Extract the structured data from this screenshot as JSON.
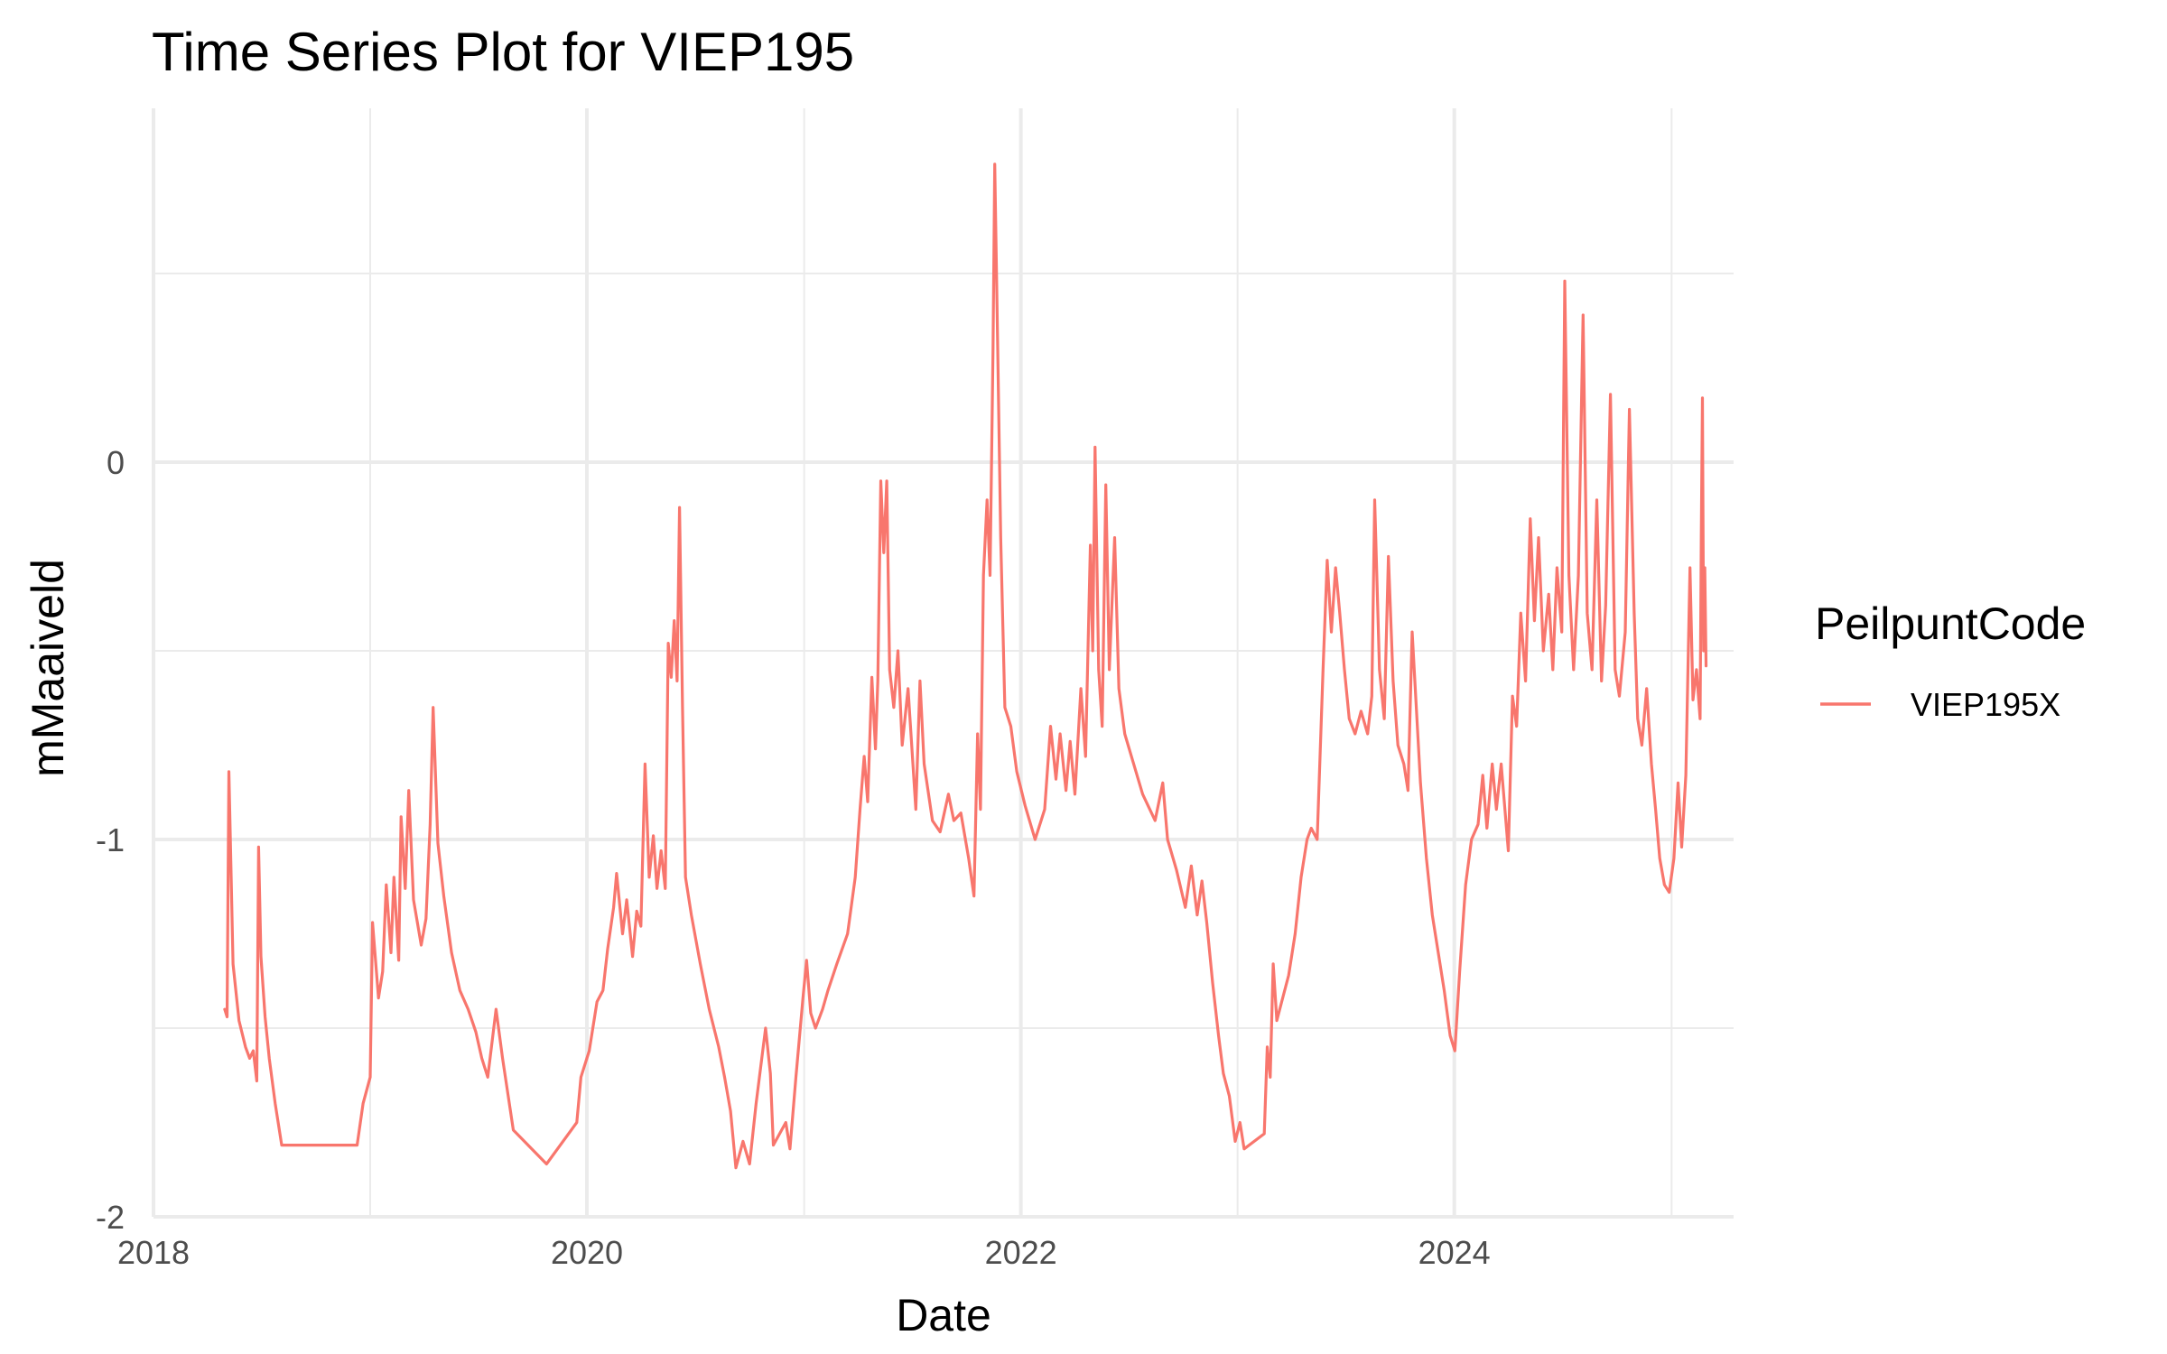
{
  "chart_data": {
    "type": "line",
    "title": "Time Series Plot for VIEP195",
    "xlabel": "Date",
    "ylabel": "mMaaiveld",
    "x_ticks": [
      "2018",
      "2020",
      "2022",
      "2024"
    ],
    "y_ticks": [
      "-2",
      "-1",
      "0"
    ],
    "xlim": [
      "2018-01-01",
      "2025-03-01"
    ],
    "ylim": [
      -2,
      0.8
    ],
    "grid": true,
    "legend": {
      "title": "PeilpuntCode",
      "position": "right"
    },
    "series": [
      {
        "name": "VIEP195X",
        "color": "#F8766D",
        "points": [
          [
            "2018-05-01",
            -1.45
          ],
          [
            "2018-05-05",
            -1.47
          ],
          [
            "2018-05-08",
            -0.82
          ],
          [
            "2018-05-15",
            -1.33
          ],
          [
            "2018-05-25",
            -1.48
          ],
          [
            "2018-06-05",
            -1.55
          ],
          [
            "2018-06-12",
            -1.58
          ],
          [
            "2018-06-18",
            -1.56
          ],
          [
            "2018-06-24",
            -1.64
          ],
          [
            "2018-06-27",
            -1.02
          ],
          [
            "2018-07-01",
            -1.31
          ],
          [
            "2018-07-08",
            -1.47
          ],
          [
            "2018-07-15",
            -1.58
          ],
          [
            "2018-07-25",
            -1.7
          ],
          [
            "2018-08-05",
            -1.81
          ],
          [
            "2018-12-10",
            -1.81
          ],
          [
            "2018-12-20",
            -1.7
          ],
          [
            "2019-01-01",
            -1.63
          ],
          [
            "2019-01-05",
            -1.22
          ],
          [
            "2019-01-15",
            -1.42
          ],
          [
            "2019-01-22",
            -1.35
          ],
          [
            "2019-01-28",
            -1.12
          ],
          [
            "2019-02-05",
            -1.3
          ],
          [
            "2019-02-10",
            -1.1
          ],
          [
            "2019-02-18",
            -1.32
          ],
          [
            "2019-02-22",
            -0.94
          ],
          [
            "2019-03-01",
            -1.13
          ],
          [
            "2019-03-07",
            -0.87
          ],
          [
            "2019-03-15",
            -1.16
          ],
          [
            "2019-03-28",
            -1.28
          ],
          [
            "2019-04-05",
            -1.21
          ],
          [
            "2019-04-12",
            -0.96
          ],
          [
            "2019-04-17",
            -0.65
          ],
          [
            "2019-04-25",
            -1.01
          ],
          [
            "2019-05-05",
            -1.15
          ],
          [
            "2019-05-18",
            -1.3
          ],
          [
            "2019-06-01",
            -1.4
          ],
          [
            "2019-06-15",
            -1.45
          ],
          [
            "2019-06-28",
            -1.51
          ],
          [
            "2019-07-08",
            -1.58
          ],
          [
            "2019-07-18",
            -1.63
          ],
          [
            "2019-08-01",
            -1.45
          ],
          [
            "2019-08-12",
            -1.58
          ],
          [
            "2019-08-30",
            -1.77
          ],
          [
            "2019-10-25",
            -1.86
          ],
          [
            "2019-12-15",
            -1.75
          ],
          [
            "2019-12-22",
            -1.63
          ],
          [
            "2020-01-05",
            -1.56
          ],
          [
            "2020-01-18",
            -1.43
          ],
          [
            "2020-01-28",
            -1.4
          ],
          [
            "2020-02-05",
            -1.29
          ],
          [
            "2020-02-15",
            -1.18
          ],
          [
            "2020-02-20",
            -1.09
          ],
          [
            "2020-03-01",
            -1.25
          ],
          [
            "2020-03-08",
            -1.16
          ],
          [
            "2020-03-18",
            -1.31
          ],
          [
            "2020-03-25",
            -1.19
          ],
          [
            "2020-04-01",
            -1.23
          ],
          [
            "2020-04-08",
            -0.8
          ],
          [
            "2020-04-15",
            -1.1
          ],
          [
            "2020-04-22",
            -0.99
          ],
          [
            "2020-04-28",
            -1.13
          ],
          [
            "2020-05-05",
            -1.03
          ],
          [
            "2020-05-12",
            -1.13
          ],
          [
            "2020-05-17",
            -0.48
          ],
          [
            "2020-05-22",
            -0.57
          ],
          [
            "2020-05-27",
            -0.42
          ],
          [
            "2020-06-01",
            -0.58
          ],
          [
            "2020-06-05",
            -0.12
          ],
          [
            "2020-06-10",
            -0.65
          ],
          [
            "2020-06-15",
            -1.1
          ],
          [
            "2020-06-25",
            -1.2
          ],
          [
            "2020-07-10",
            -1.33
          ],
          [
            "2020-07-25",
            -1.45
          ],
          [
            "2020-08-10",
            -1.55
          ],
          [
            "2020-08-20",
            -1.63
          ],
          [
            "2020-08-30",
            -1.72
          ],
          [
            "2020-09-08",
            -1.87
          ],
          [
            "2020-09-20",
            -1.8
          ],
          [
            "2020-10-01",
            -1.86
          ],
          [
            "2020-10-12",
            -1.7
          ],
          [
            "2020-10-28",
            -1.5
          ],
          [
            "2020-11-05",
            -1.62
          ],
          [
            "2020-11-10",
            -1.81
          ],
          [
            "2020-12-01",
            -1.75
          ],
          [
            "2020-12-08",
            -1.82
          ],
          [
            "2020-12-18",
            -1.63
          ],
          [
            "2020-12-30",
            -1.42
          ],
          [
            "2021-01-05",
            -1.32
          ],
          [
            "2021-01-12",
            -1.46
          ],
          [
            "2021-01-20",
            -1.5
          ],
          [
            "2021-02-01",
            -1.45
          ],
          [
            "2021-02-10",
            -1.4
          ],
          [
            "2021-02-25",
            -1.33
          ],
          [
            "2021-03-15",
            -1.25
          ],
          [
            "2021-03-28",
            -1.1
          ],
          [
            "2021-04-05",
            -0.92
          ],
          [
            "2021-04-12",
            -0.78
          ],
          [
            "2021-04-18",
            -0.9
          ],
          [
            "2021-04-25",
            -0.57
          ],
          [
            "2021-05-01",
            -0.76
          ],
          [
            "2021-05-05",
            -0.58
          ],
          [
            "2021-05-10",
            -0.05
          ],
          [
            "2021-05-15",
            -0.24
          ],
          [
            "2021-05-20",
            -0.05
          ],
          [
            "2021-05-25",
            -0.55
          ],
          [
            "2021-06-01",
            -0.65
          ],
          [
            "2021-06-08",
            -0.5
          ],
          [
            "2021-06-15",
            -0.75
          ],
          [
            "2021-06-25",
            -0.6
          ],
          [
            "2021-07-08",
            -0.92
          ],
          [
            "2021-07-15",
            -0.58
          ],
          [
            "2021-07-22",
            -0.8
          ],
          [
            "2021-08-05",
            -0.95
          ],
          [
            "2021-08-18",
            -0.98
          ],
          [
            "2021-09-01",
            -0.88
          ],
          [
            "2021-09-10",
            -0.95
          ],
          [
            "2021-09-22",
            -0.93
          ],
          [
            "2021-10-05",
            -1.05
          ],
          [
            "2021-10-14",
            -1.15
          ],
          [
            "2021-10-20",
            -0.72
          ],
          [
            "2021-10-25",
            -0.92
          ],
          [
            "2021-10-30",
            -0.3
          ],
          [
            "2021-11-05",
            -0.1
          ],
          [
            "2021-11-10",
            -0.3
          ],
          [
            "2021-11-15",
            0.3
          ],
          [
            "2021-11-18",
            0.79
          ],
          [
            "2021-11-23",
            0.3
          ],
          [
            "2021-11-28",
            -0.2
          ],
          [
            "2021-12-05",
            -0.65
          ],
          [
            "2021-12-15",
            -0.7
          ],
          [
            "2021-12-25",
            -0.82
          ],
          [
            "2022-01-08",
            -0.91
          ],
          [
            "2022-01-25",
            -1.0
          ],
          [
            "2022-02-10",
            -0.92
          ],
          [
            "2022-02-20",
            -0.7
          ],
          [
            "2022-03-01",
            -0.84
          ],
          [
            "2022-03-08",
            -0.72
          ],
          [
            "2022-03-18",
            -0.87
          ],
          [
            "2022-03-25",
            -0.74
          ],
          [
            "2022-04-02",
            -0.88
          ],
          [
            "2022-04-12",
            -0.6
          ],
          [
            "2022-04-20",
            -0.78
          ],
          [
            "2022-04-28",
            -0.22
          ],
          [
            "2022-05-02",
            -0.5
          ],
          [
            "2022-05-06",
            0.04
          ],
          [
            "2022-05-12",
            -0.55
          ],
          [
            "2022-05-18",
            -0.7
          ],
          [
            "2022-05-24",
            -0.06
          ],
          [
            "2022-05-30",
            -0.55
          ],
          [
            "2022-06-08",
            -0.2
          ],
          [
            "2022-06-15",
            -0.6
          ],
          [
            "2022-06-25",
            -0.72
          ],
          [
            "2022-07-10",
            -0.8
          ],
          [
            "2022-07-25",
            -0.88
          ],
          [
            "2022-08-15",
            -0.95
          ],
          [
            "2022-08-28",
            -0.85
          ],
          [
            "2022-09-05",
            -1.0
          ],
          [
            "2022-09-20",
            -1.08
          ],
          [
            "2022-10-05",
            -1.18
          ],
          [
            "2022-10-15",
            -1.07
          ],
          [
            "2022-10-25",
            -1.2
          ],
          [
            "2022-11-02",
            -1.11
          ],
          [
            "2022-11-10",
            -1.22
          ],
          [
            "2022-11-20",
            -1.38
          ],
          [
            "2022-11-30",
            -1.52
          ],
          [
            "2022-12-08",
            -1.62
          ],
          [
            "2022-12-18",
            -1.68
          ],
          [
            "2022-12-28",
            -1.8
          ],
          [
            "2023-01-05",
            -1.75
          ],
          [
            "2023-01-12",
            -1.82
          ],
          [
            "2023-02-15",
            -1.78
          ],
          [
            "2023-02-20",
            -1.55
          ],
          [
            "2023-02-25",
            -1.63
          ],
          [
            "2023-03-02",
            -1.33
          ],
          [
            "2023-03-08",
            -1.48
          ],
          [
            "2023-03-18",
            -1.42
          ],
          [
            "2023-03-28",
            -1.36
          ],
          [
            "2023-04-08",
            -1.25
          ],
          [
            "2023-04-18",
            -1.1
          ],
          [
            "2023-04-28",
            -1.0
          ],
          [
            "2023-05-05",
            -0.97
          ],
          [
            "2023-05-15",
            -1.0
          ],
          [
            "2023-05-25",
            -0.55
          ],
          [
            "2023-06-01",
            -0.26
          ],
          [
            "2023-06-08",
            -0.45
          ],
          [
            "2023-06-15",
            -0.28
          ],
          [
            "2023-06-22",
            -0.4
          ],
          [
            "2023-06-30",
            -0.55
          ],
          [
            "2023-07-08",
            -0.68
          ],
          [
            "2023-07-18",
            -0.72
          ],
          [
            "2023-07-28",
            -0.66
          ],
          [
            "2023-08-08",
            -0.72
          ],
          [
            "2023-08-15",
            -0.62
          ],
          [
            "2023-08-20",
            -0.1
          ],
          [
            "2023-08-28",
            -0.55
          ],
          [
            "2023-09-05",
            -0.68
          ],
          [
            "2023-09-12",
            -0.25
          ],
          [
            "2023-09-20",
            -0.58
          ],
          [
            "2023-09-28",
            -0.75
          ],
          [
            "2023-10-08",
            -0.8
          ],
          [
            "2023-10-15",
            -0.87
          ],
          [
            "2023-10-22",
            -0.45
          ],
          [
            "2023-10-28",
            -0.62
          ],
          [
            "2023-11-05",
            -0.85
          ],
          [
            "2023-11-15",
            -1.05
          ],
          [
            "2023-11-25",
            -1.2
          ],
          [
            "2023-12-05",
            -1.3
          ],
          [
            "2023-12-15",
            -1.4
          ],
          [
            "2023-12-25",
            -1.52
          ],
          [
            "2024-01-02",
            -1.56
          ],
          [
            "2024-01-10",
            -1.35
          ],
          [
            "2024-01-20",
            -1.12
          ],
          [
            "2024-01-30",
            -1.0
          ],
          [
            "2024-02-10",
            -0.96
          ],
          [
            "2024-02-18",
            -0.83
          ],
          [
            "2024-02-25",
            -0.97
          ],
          [
            "2024-03-05",
            -0.8
          ],
          [
            "2024-03-12",
            -0.92
          ],
          [
            "2024-03-20",
            -0.8
          ],
          [
            "2024-04-01",
            -1.03
          ],
          [
            "2024-04-08",
            -0.62
          ],
          [
            "2024-04-15",
            -0.7
          ],
          [
            "2024-04-22",
            -0.4
          ],
          [
            "2024-04-30",
            -0.58
          ],
          [
            "2024-05-08",
            -0.15
          ],
          [
            "2024-05-15",
            -0.42
          ],
          [
            "2024-05-22",
            -0.2
          ],
          [
            "2024-05-30",
            -0.5
          ],
          [
            "2024-06-08",
            -0.35
          ],
          [
            "2024-06-15",
            -0.55
          ],
          [
            "2024-06-22",
            -0.28
          ],
          [
            "2024-06-30",
            -0.45
          ],
          [
            "2024-07-05",
            0.48
          ],
          [
            "2024-07-12",
            -0.3
          ],
          [
            "2024-07-20",
            -0.55
          ],
          [
            "2024-07-28",
            -0.3
          ],
          [
            "2024-08-05",
            0.39
          ],
          [
            "2024-08-12",
            -0.4
          ],
          [
            "2024-08-20",
            -0.55
          ],
          [
            "2024-08-28",
            -0.1
          ],
          [
            "2024-09-05",
            -0.58
          ],
          [
            "2024-09-12",
            -0.38
          ],
          [
            "2024-09-20",
            0.18
          ],
          [
            "2024-09-28",
            -0.55
          ],
          [
            "2024-10-05",
            -0.62
          ],
          [
            "2024-10-15",
            -0.45
          ],
          [
            "2024-10-22",
            0.14
          ],
          [
            "2024-10-30",
            -0.4
          ],
          [
            "2024-11-05",
            -0.68
          ],
          [
            "2024-11-12",
            -0.75
          ],
          [
            "2024-11-20",
            -0.6
          ],
          [
            "2024-11-28",
            -0.8
          ],
          [
            "2024-12-05",
            -0.92
          ],
          [
            "2024-12-12",
            -1.05
          ],
          [
            "2024-12-20",
            -1.12
          ],
          [
            "2024-12-28",
            -1.14
          ],
          [
            "2025-01-05",
            -1.05
          ],
          [
            "2025-01-12",
            -0.85
          ],
          [
            "2025-01-18",
            -1.02
          ],
          [
            "2025-01-25",
            -0.83
          ],
          [
            "2025-02-01",
            -0.28
          ],
          [
            "2025-02-06",
            -0.63
          ],
          [
            "2025-02-12",
            -0.55
          ],
          [
            "2025-02-18",
            -0.68
          ],
          [
            "2025-02-20",
            -0.2
          ],
          [
            "2025-02-22",
            0.17
          ],
          [
            "2025-02-24",
            -0.5
          ],
          [
            "2025-02-26",
            -0.28
          ],
          [
            "2025-02-28",
            -0.54
          ]
        ]
      }
    ]
  }
}
